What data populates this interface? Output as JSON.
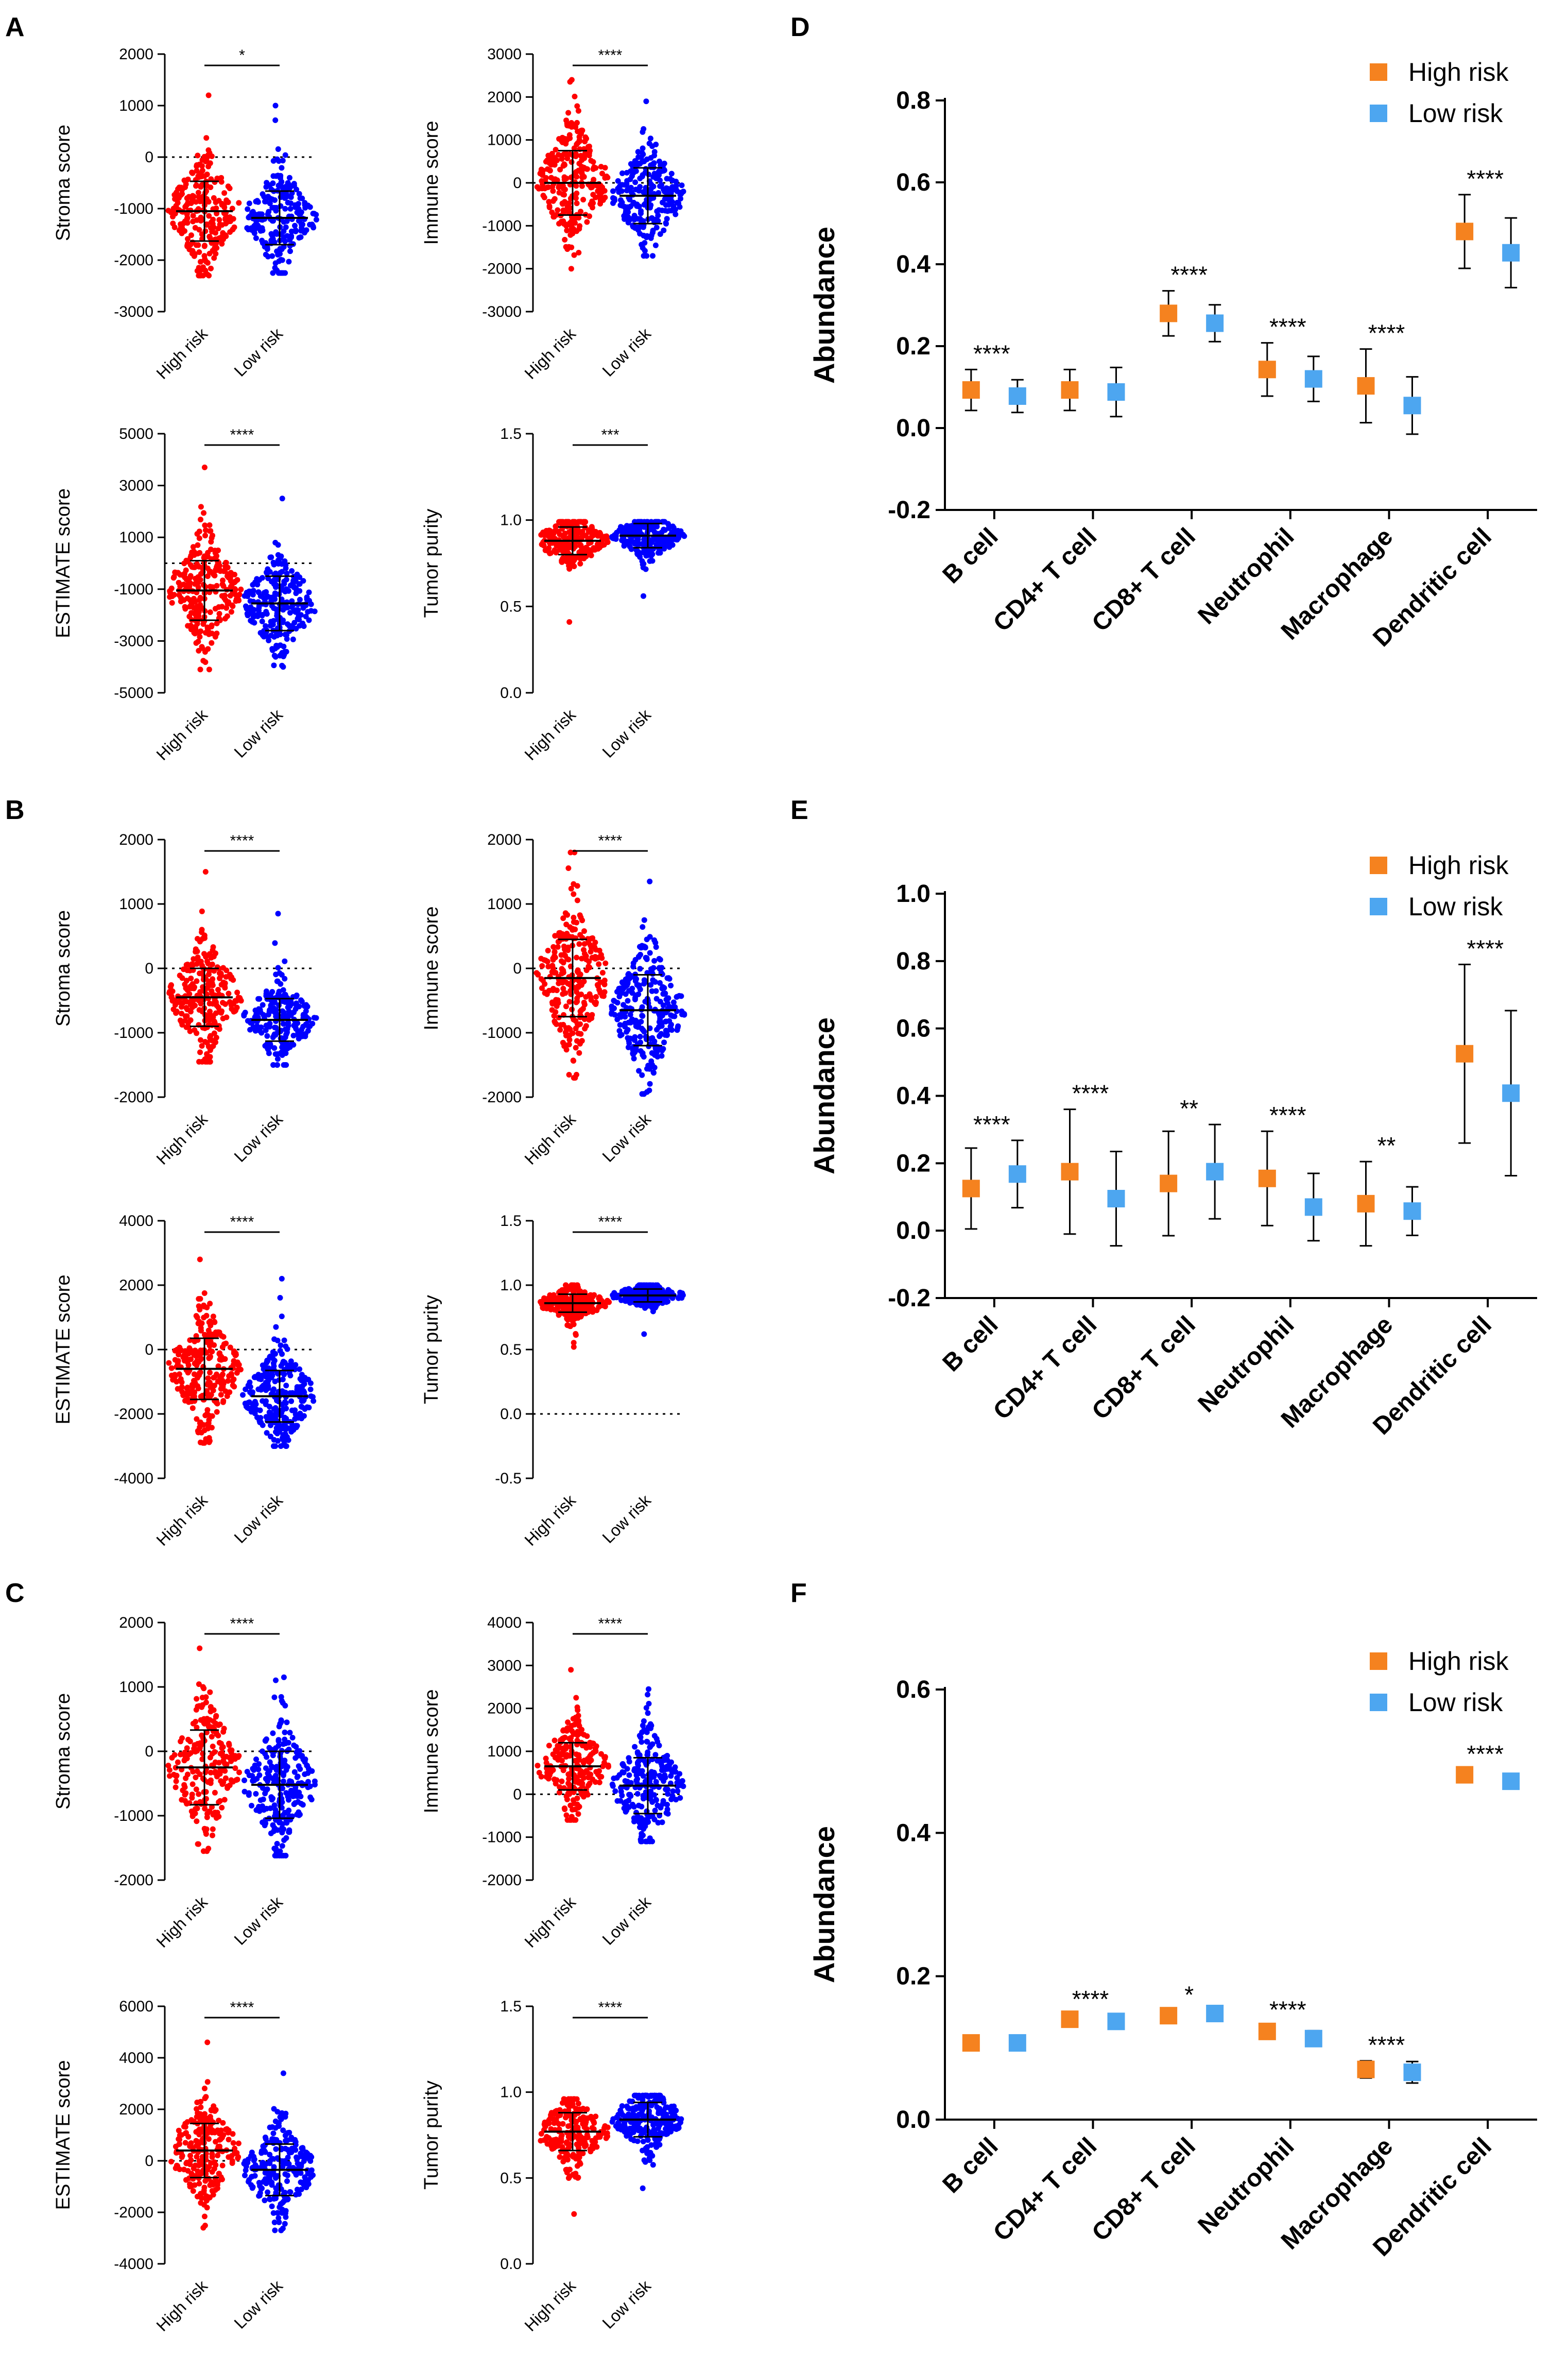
{
  "colors": {
    "high_scatter": "#ff0000",
    "low_scatter": "#0000ff",
    "high_marker": "#f5821f",
    "low_marker": "#4da6f0"
  },
  "panels": [
    {
      "letter": "A",
      "charts": [
        {
          "type": "scatter",
          "title": "",
          "ylabel": "Stroma score",
          "ylim": [
            -3000,
            2000
          ],
          "ticks": [
            2000,
            1000,
            0,
            -1000,
            -2000,
            -3000
          ],
          "dotted_at": 0,
          "categories": [
            "High risk",
            "Low risk"
          ],
          "sig": "*",
          "series": [
            {
              "name": "High risk",
              "mean": -1050,
              "sd": 580,
              "min": -2300,
              "max": 1200,
              "n": 240
            },
            {
              "name": "Low risk",
              "mean": -1180,
              "sd": 520,
              "min": -2250,
              "max": 1000,
              "n": 220
            }
          ]
        },
        {
          "type": "scatter",
          "title": "",
          "ylabel": "Immune score",
          "ylim": [
            -3000,
            3000
          ],
          "ticks": [
            3000,
            2000,
            1000,
            0,
            -1000,
            -2000,
            -3000
          ],
          "dotted_at": 0,
          "categories": [
            "High risk",
            "Low risk"
          ],
          "sig": "****",
          "series": [
            {
              "name": "High risk",
              "mean": 0,
              "sd": 750,
              "min": -2000,
              "max": 2400,
              "n": 260
            },
            {
              "name": "Low risk",
              "mean": -300,
              "sd": 650,
              "min": -1700,
              "max": 1900,
              "n": 240
            }
          ]
        },
        {
          "type": "scatter",
          "title": "",
          "ylabel": "ESTIMATE score",
          "ylim": [
            -5000,
            5000
          ],
          "ticks": [
            5000,
            3000,
            1000,
            -1000,
            -3000,
            -5000
          ],
          "dotted_at": 0,
          "categories": [
            "High risk",
            "Low risk"
          ],
          "sig": "****",
          "series": [
            {
              "name": "High risk",
              "mean": -1050,
              "sd": 1150,
              "min": -4100,
              "max": 3700,
              "n": 260
            },
            {
              "name": "Low risk",
              "mean": -1550,
              "sd": 1050,
              "min": -4000,
              "max": 2500,
              "n": 240
            }
          ]
        },
        {
          "type": "scatter",
          "title": "",
          "ylabel": "Tumor purity",
          "ylim": [
            0,
            1.5
          ],
          "ticks": [
            "1.5",
            "1.0",
            "0.5",
            "0.0"
          ],
          "dotted_at": null,
          "categories": [
            "High risk",
            "Low risk"
          ],
          "sig": "***",
          "series": [
            {
              "name": "High risk",
              "mean": 0.88,
              "sd": 0.08,
              "min": 0.41,
              "max": 0.99,
              "n": 240
            },
            {
              "name": "Low risk",
              "mean": 0.91,
              "sd": 0.07,
              "min": 0.56,
              "max": 0.99,
              "n": 220
            }
          ]
        }
      ]
    },
    {
      "letter": "B",
      "charts": [
        {
          "type": "scatter",
          "title": "",
          "ylabel": "Stroma score",
          "ylim": [
            -2000,
            2000
          ],
          "ticks": [
            2000,
            1000,
            0,
            -1000,
            -2000
          ],
          "dotted_at": 0,
          "categories": [
            "High risk",
            "Low risk"
          ],
          "sig": "****",
          "series": [
            {
              "name": "High risk",
              "mean": -450,
              "sd": 450,
              "min": -1450,
              "max": 1500,
              "n": 240
            },
            {
              "name": "Low risk",
              "mean": -800,
              "sd": 330,
              "min": -1500,
              "max": 850,
              "n": 220
            }
          ]
        },
        {
          "type": "scatter",
          "title": "",
          "ylabel": "Immune score",
          "ylim": [
            -2000,
            2000
          ],
          "ticks": [
            2000,
            1000,
            0,
            -1000,
            -2000
          ],
          "dotted_at": 0,
          "categories": [
            "High risk",
            "Low risk"
          ],
          "sig": "****",
          "series": [
            {
              "name": "High risk",
              "mean": -150,
              "sd": 600,
              "min": -1700,
              "max": 1800,
              "n": 260
            },
            {
              "name": "Low risk",
              "mean": -650,
              "sd": 550,
              "min": -1950,
              "max": 1350,
              "n": 280
            }
          ]
        },
        {
          "type": "scatter",
          "title": "",
          "ylabel": "ESTIMATE score",
          "ylim": [
            -4000,
            4000
          ],
          "ticks": [
            4000,
            2000,
            0,
            -2000,
            -4000
          ],
          "dotted_at": 0,
          "categories": [
            "High risk",
            "Low risk"
          ],
          "sig": "****",
          "series": [
            {
              "name": "High risk",
              "mean": -600,
              "sd": 950,
              "min": -2900,
              "max": 2800,
              "n": 260
            },
            {
              "name": "Low risk",
              "mean": -1450,
              "sd": 800,
              "min": -3000,
              "max": 2200,
              "n": 260
            }
          ]
        },
        {
          "type": "scatter",
          "title": "",
          "ylabel": "Tumor purity",
          "ylim": [
            -0.5,
            1.5
          ],
          "ticks": [
            "1.5",
            "1.0",
            "0.5",
            "0.0",
            "-0.5"
          ],
          "dotted_at": 0,
          "categories": [
            "High risk",
            "Low risk"
          ],
          "sig": "****",
          "series": [
            {
              "name": "High risk",
              "mean": 0.86,
              "sd": 0.07,
              "min": 0.52,
              "max": 1.0,
              "n": 240
            },
            {
              "name": "Low risk",
              "mean": 0.92,
              "sd": 0.05,
              "min": 0.62,
              "max": 1.0,
              "n": 220
            }
          ]
        }
      ]
    },
    {
      "letter": "C",
      "charts": [
        {
          "type": "scatter",
          "title": "",
          "ylabel": "Stroma score",
          "ylim": [
            -2000,
            2000
          ],
          "ticks": [
            2000,
            1000,
            0,
            -1000,
            -2000
          ],
          "dotted_at": 0,
          "categories": [
            "High risk",
            "Low risk"
          ],
          "sig": "****",
          "series": [
            {
              "name": "High risk",
              "mean": -250,
              "sd": 580,
              "min": -1550,
              "max": 1600,
              "n": 220
            },
            {
              "name": "Low risk",
              "mean": -520,
              "sd": 520,
              "min": -1620,
              "max": 1150,
              "n": 240
            }
          ]
        },
        {
          "type": "scatter",
          "title": "",
          "ylabel": "Immune score",
          "ylim": [
            -2000,
            4000
          ],
          "ticks": [
            4000,
            3000,
            2000,
            1000,
            0,
            -1000,
            -2000
          ],
          "dotted_at": 0,
          "categories": [
            "High risk",
            "Low risk"
          ],
          "sig": "****",
          "series": [
            {
              "name": "High risk",
              "mean": 650,
              "sd": 550,
              "min": -600,
              "max": 2900,
              "n": 220
            },
            {
              "name": "Low risk",
              "mean": 200,
              "sd": 650,
              "min": -1100,
              "max": 2450,
              "n": 240
            }
          ]
        },
        {
          "type": "scatter",
          "title": "",
          "ylabel": "ESTIMATE score",
          "ylim": [
            -4000,
            6000
          ],
          "ticks": [
            6000,
            4000,
            2000,
            0,
            -2000,
            -4000
          ],
          "dotted_at": 0,
          "categories": [
            "High risk",
            "Low risk"
          ],
          "sig": "****",
          "series": [
            {
              "name": "High risk",
              "mean": 400,
              "sd": 1050,
              "min": -2600,
              "max": 4600,
              "n": 220
            },
            {
              "name": "Low risk",
              "mean": -350,
              "sd": 1000,
              "min": -2700,
              "max": 3400,
              "n": 240
            }
          ]
        },
        {
          "type": "scatter",
          "title": "",
          "ylabel": "Tumor purity",
          "ylim": [
            0,
            1.5
          ],
          "ticks": [
            "1.5",
            "1.0",
            "0.5",
            "0.0"
          ],
          "dotted_at": null,
          "categories": [
            "High risk",
            "Low risk"
          ],
          "sig": "****",
          "series": [
            {
              "name": "High risk",
              "mean": 0.77,
              "sd": 0.11,
              "min": 0.29,
              "max": 0.96,
              "n": 220
            },
            {
              "name": "Low risk",
              "mean": 0.84,
              "sd": 0.1,
              "min": 0.44,
              "max": 0.98,
              "n": 240
            }
          ]
        }
      ]
    },
    {
      "letter": "D",
      "charts": [
        {
          "type": "errorbar",
          "title": "",
          "ylabel": "Abundance",
          "ylim": [
            -0.2,
            0.8
          ],
          "ticks": [
            "0.8",
            "0.6",
            "0.4",
            "0.2",
            "0.0",
            "-0.2"
          ],
          "has_zero": false,
          "categories": [
            "B cell",
            "CD4+ T cell",
            "CD8+ T cell",
            "Neutrophil",
            "Macrophage",
            "Dendritic cell"
          ],
          "legend": [
            "High risk",
            "Low risk"
          ],
          "sig": [
            "****",
            "",
            "****",
            "****",
            "****",
            "****"
          ],
          "series": [
            {
              "name": "High risk",
              "values": [
                0.093,
                0.093,
                0.28,
                0.143,
                0.103,
                0.48
              ],
              "err": [
                0.05,
                0.05,
                0.055,
                0.065,
                0.09,
                0.09
              ]
            },
            {
              "name": "Low risk",
              "values": [
                0.078,
                0.088,
                0.256,
                0.12,
                0.055,
                0.428
              ],
              "err": [
                0.04,
                0.06,
                0.045,
                0.055,
                0.07,
                0.085
              ]
            }
          ]
        }
      ]
    },
    {
      "letter": "E",
      "charts": [
        {
          "type": "errorbar",
          "title": "",
          "ylabel": "Abundance",
          "ylim": [
            -0.2,
            1.0
          ],
          "ticks": [
            "1.0",
            "0.8",
            "0.6",
            "0.4",
            "0.2",
            "0.0",
            "-0.2"
          ],
          "has_zero": false,
          "categories": [
            "B cell",
            "CD4+ T cell",
            "CD8+ T cell",
            "Neutrophil",
            "Macrophage",
            "Dendritic cell"
          ],
          "legend": [
            "High risk",
            "Low risk"
          ],
          "sig": [
            "****",
            "****",
            "**",
            "****",
            "**",
            "****"
          ],
          "series": [
            {
              "name": "High risk",
              "values": [
                0.125,
                0.175,
                0.14,
                0.155,
                0.08,
                0.525
              ],
              "err": [
                0.12,
                0.185,
                0.155,
                0.14,
                0.125,
                0.265
              ]
            },
            {
              "name": "Low risk",
              "values": [
                0.168,
                0.095,
                0.175,
                0.07,
                0.058,
                0.408
              ],
              "err": [
                0.1,
                0.14,
                0.14,
                0.1,
                0.072,
                0.245
              ]
            }
          ]
        }
      ]
    },
    {
      "letter": "F",
      "charts": [
        {
          "type": "errorbar",
          "title": "",
          "ylabel": "Abundance",
          "ylim": [
            0.0,
            0.6
          ],
          "ticks": [
            "0.6",
            "0.4",
            "0.2",
            "0.0"
          ],
          "has_zero": true,
          "categories": [
            "B cell",
            "CD4+ T cell",
            "CD8+ T cell",
            "Neutrophil",
            "Macrophage",
            "Dendritic cell"
          ],
          "legend": [
            "High risk",
            "Low risk"
          ],
          "sig": [
            "",
            "****",
            "*",
            "****",
            "****",
            "****"
          ],
          "series": [
            {
              "name": "High risk",
              "values": [
                0.107,
                0.14,
                0.145,
                0.123,
                0.07,
                0.481
              ],
              "err": [
                0.003,
                0.006,
                0.004,
                0.008,
                0.012,
                0.007
              ]
            },
            {
              "name": "Low risk",
              "values": [
                0.107,
                0.137,
                0.148,
                0.113,
                0.066,
                0.472
              ],
              "err": [
                0.003,
                0.005,
                0.004,
                0.011,
                0.015,
                0.008
              ]
            }
          ]
        }
      ]
    }
  ]
}
